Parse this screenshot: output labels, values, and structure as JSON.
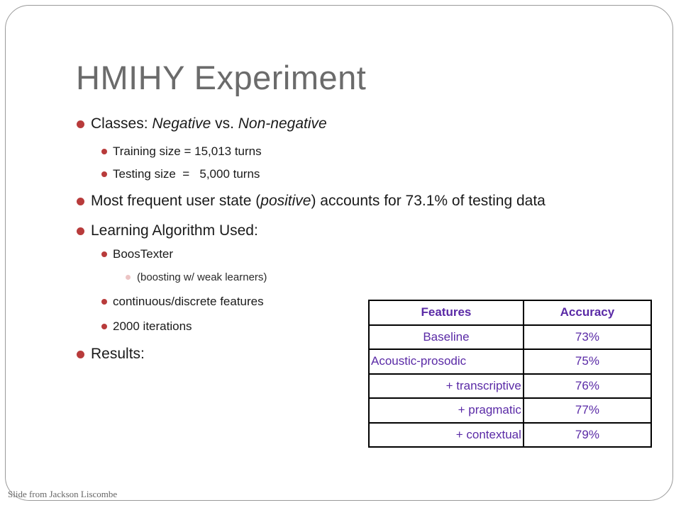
{
  "title": "HMIHY Experiment",
  "bullets": {
    "classes": {
      "prefix": "Classes: ",
      "neg": "Negative",
      "vs": " vs. ",
      "nonneg": "Non-negative"
    },
    "training": "Training size = 15,013  turns",
    "testing": "Testing size  =   5,000 turns",
    "frequent": {
      "prefix": "Most frequent user state (",
      "em": "positive",
      "suffix": ") accounts for 73.1% of testing data"
    },
    "algo": "Learning Algorithm Used:",
    "boostexter": "BoosTexter",
    "boosting_note": "(boosting w/ weak learners)",
    "features": "continuous/discrete features",
    "iterations": "2000 iterations",
    "results": "Results:"
  },
  "table": {
    "headers": [
      "Features",
      "Accuracy"
    ],
    "rows": [
      {
        "feature": "Baseline",
        "accuracy": "73%"
      },
      {
        "feature": "Acoustic-prosodic",
        "accuracy": "75%"
      },
      {
        "feature": "+ transcriptive",
        "accuracy": "76%"
      },
      {
        "feature": "+ pragmatic",
        "accuracy": "77%"
      },
      {
        "feature": "+ contextual",
        "accuracy": "79%"
      }
    ]
  },
  "footer": "Slide from Jackson Liscombe",
  "colors": {
    "bullet": "#b83b3b",
    "subsub_bullet": "#ecc4c4",
    "table_text": "#5a2aa6",
    "title": "#6b6b6b"
  }
}
